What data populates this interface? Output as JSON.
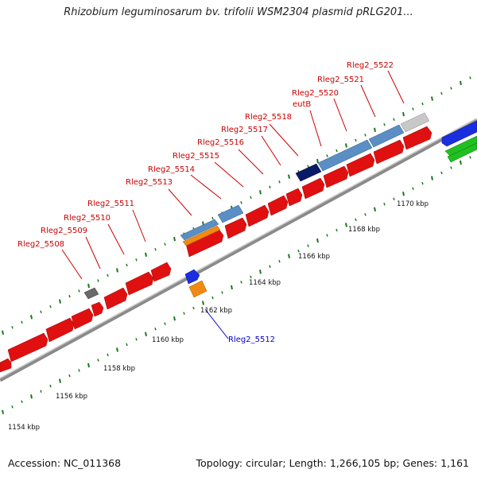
{
  "title": "Rhizobium leguminosarum bv. trifolii WSM2304 plasmid pRLG201...",
  "footer": {
    "accession": "Accession: NC_011368",
    "topology": "Topology: circular; Length: 1,266,105 bp; Genes: 1,161"
  },
  "colors": {
    "cds_forward": "#e01010",
    "label_red": "#cc0000",
    "label_blue": "#0000cc",
    "ticks": "#1a7a1a",
    "backbone": "#808080"
  },
  "tick_labels": [
    "1154 kbp",
    "1156 kbp",
    "1158 kbp",
    "1160 kbp",
    "1162 kbp",
    "1164 kbp",
    "1166 kbp",
    "1168 kbp",
    "1170 kbp"
  ],
  "gene_labels": [
    "Rleg2_5508",
    "Rleg2_5509",
    "Rleg2_5510",
    "Rleg2_5511",
    "Rleg2_5512",
    "Rleg2_5513",
    "Rleg2_5514",
    "Rleg2_5515",
    "Rleg2_5516",
    "Rleg2_5517",
    "Rleg2_5518",
    "eutB",
    "Rleg2_5520",
    "Rleg2_5521",
    "Rleg2_5522"
  ]
}
